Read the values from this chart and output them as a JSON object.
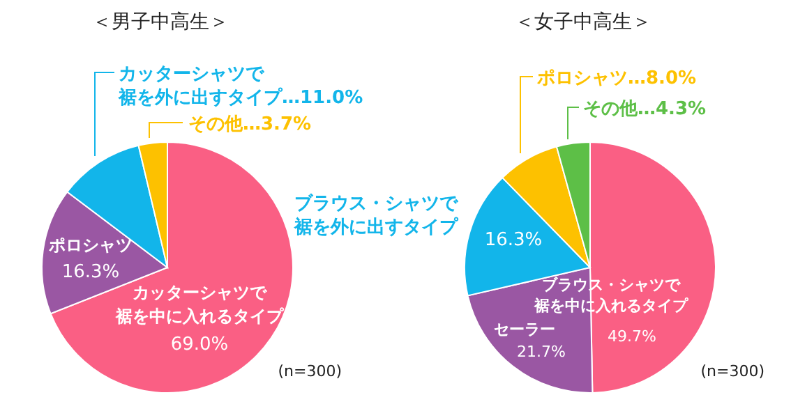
{
  "chart_data": [
    {
      "type": "pie",
      "title": "＜男子中高生＞",
      "categories": [
        "カッターシャツで裾を中に入れるタイプ",
        "ポロシャツ",
        "カッターシャツで裾を外に出すタイプ",
        "その他"
      ],
      "values": [
        69.0,
        16.3,
        11.0,
        3.7
      ],
      "value_labels": [
        "69.0%",
        "16.3%",
        "…11.0%",
        "…3.7%"
      ],
      "colors": [
        "#fa5f84",
        "#9a57a3",
        "#12b5ea",
        "#fdc100"
      ],
      "annotations": [
        "(n=300)"
      ]
    },
    {
      "type": "pie",
      "title": "＜女子中高生＞",
      "categories": [
        "ブラウス・シャツで裾を中に入れるタイプ",
        "セーラー",
        "ブラウス・シャツで裾を外に出すタイプ",
        "ポロシャツ",
        "その他"
      ],
      "values": [
        49.7,
        21.7,
        16.3,
        8.0,
        4.3
      ],
      "value_labels": [
        "49.7%",
        "21.7%",
        "16.3%",
        "…8.0%",
        "…4.3%"
      ],
      "colors": [
        "#fa5f84",
        "#9a57a3",
        "#12b5ea",
        "#fdc100",
        "#5dbf47"
      ],
      "annotations": [
        "(n=300)"
      ]
    }
  ]
}
